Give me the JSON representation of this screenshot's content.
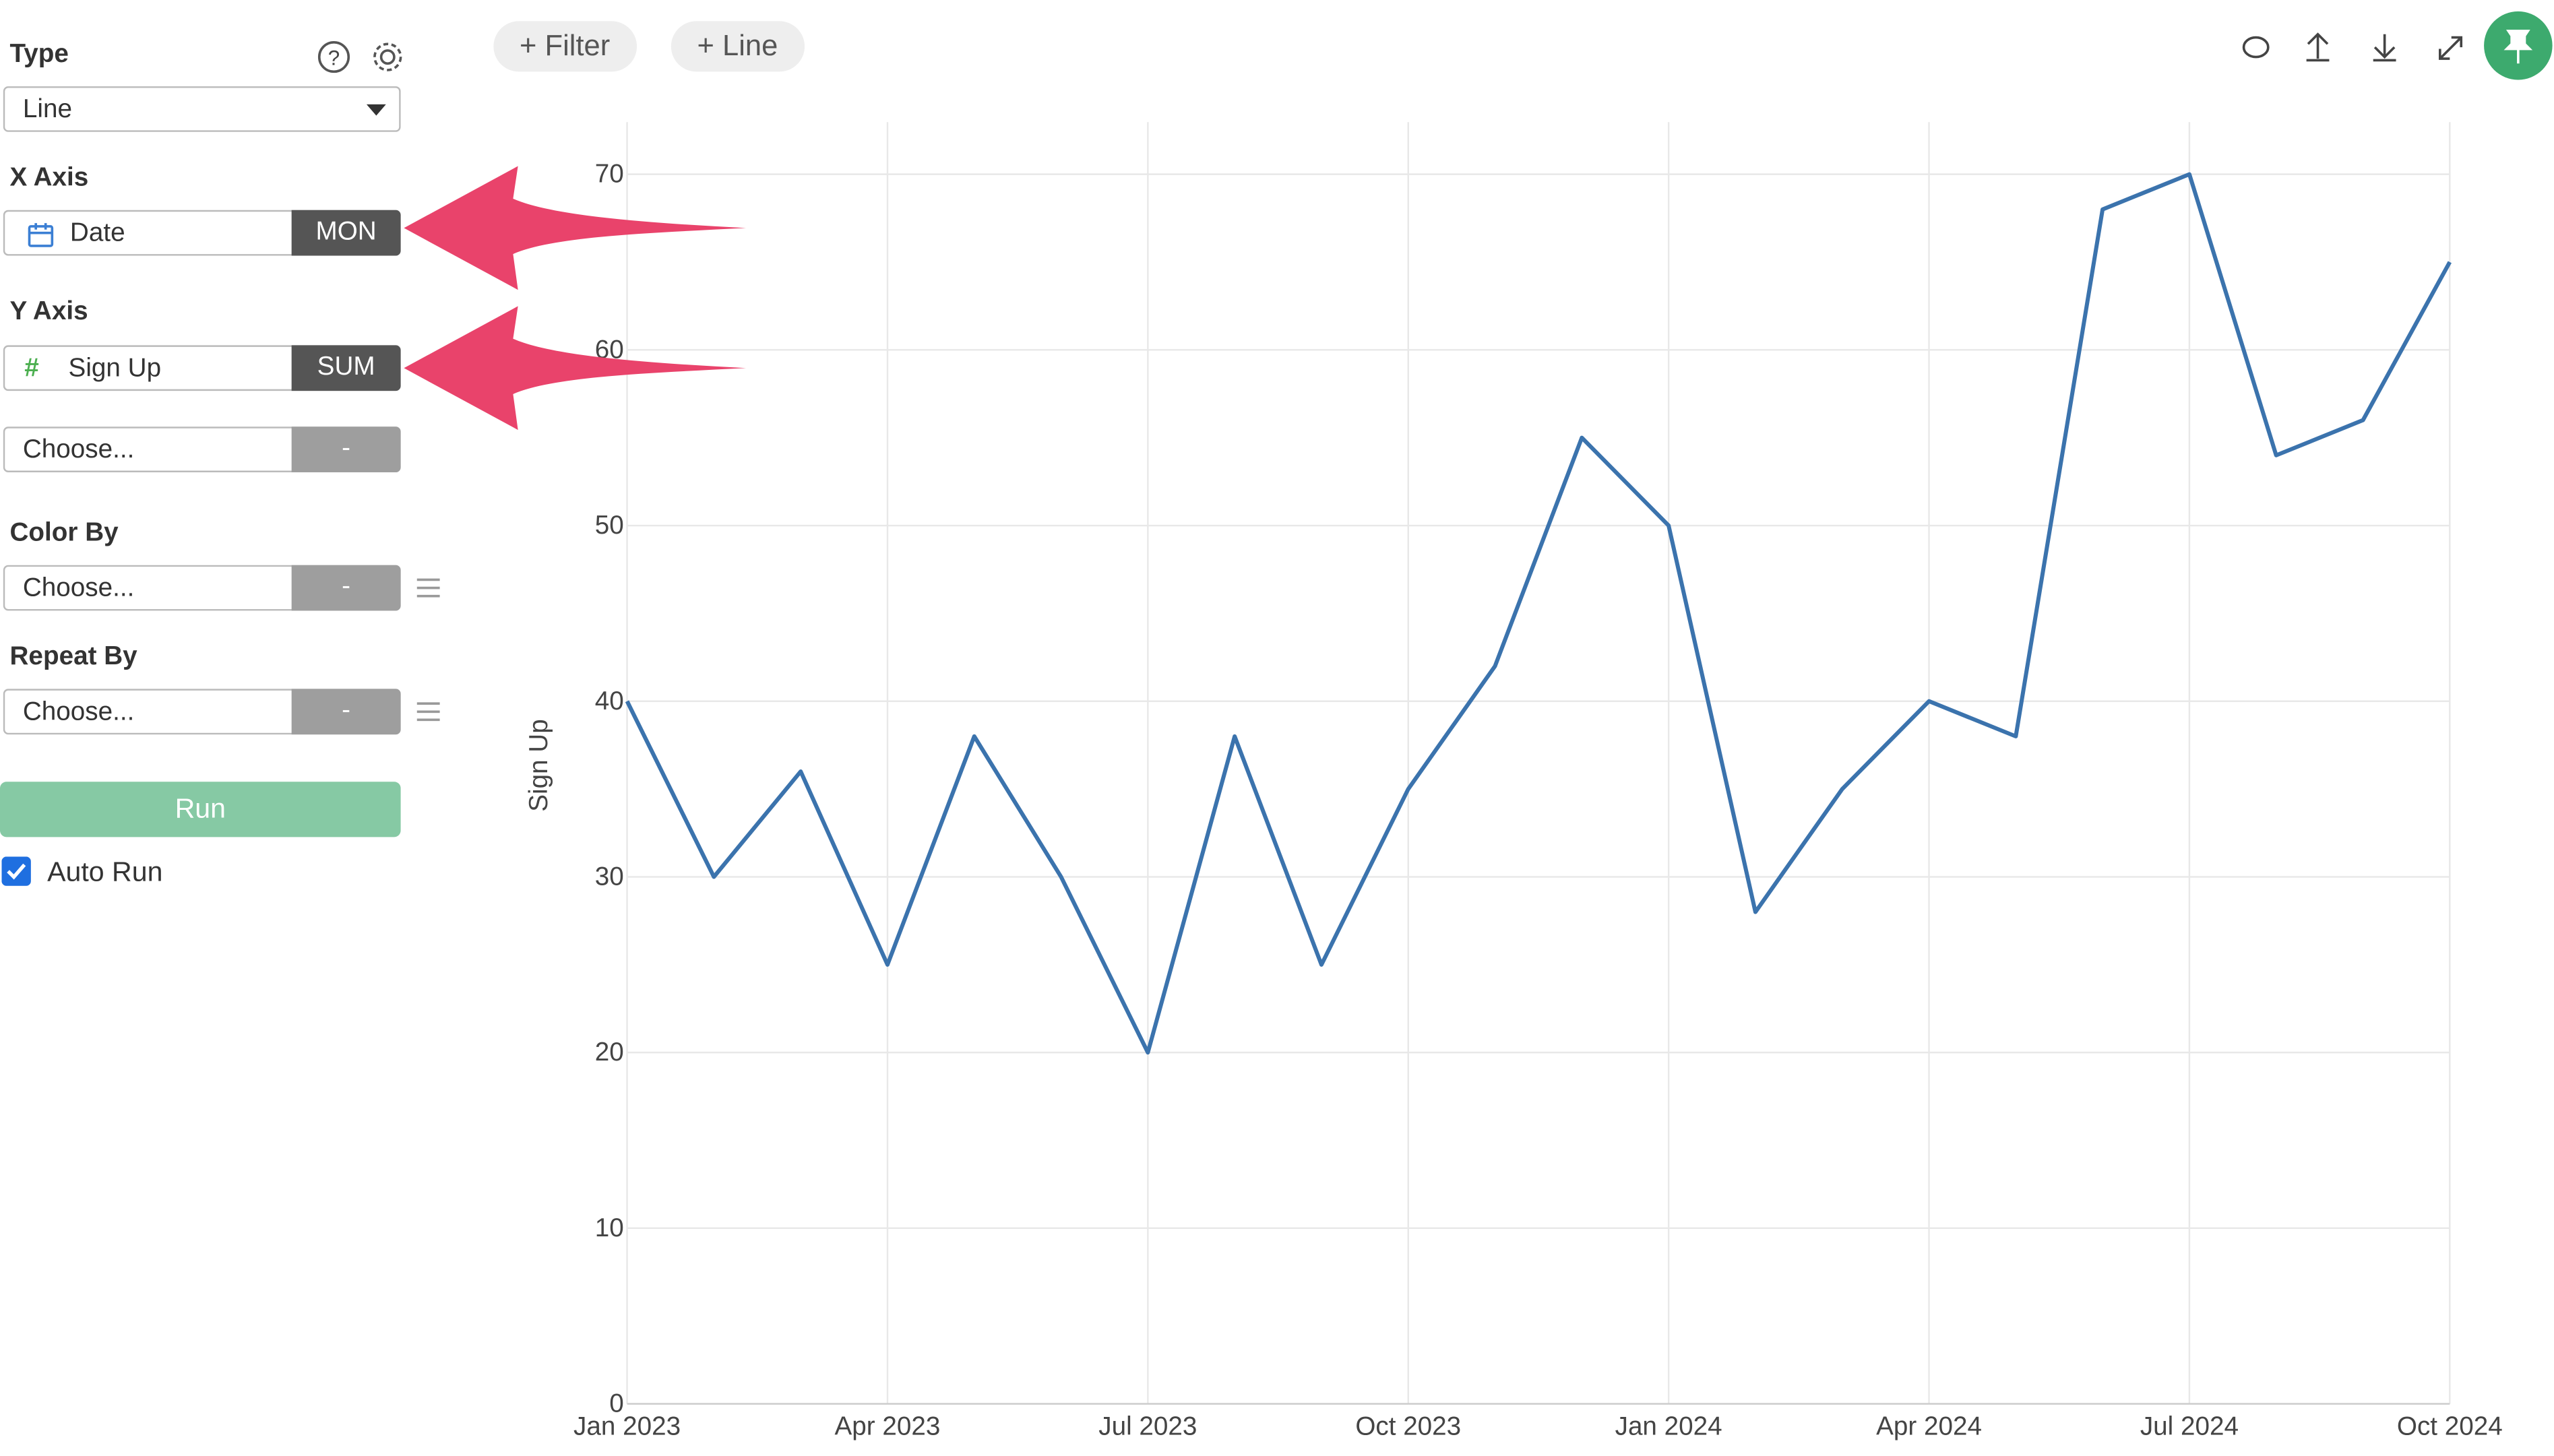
{
  "sidebar": {
    "type_label": "Type",
    "type_value": "Line",
    "x_axis_label": "X Axis",
    "x_field": "Date",
    "x_agg": "MON",
    "y_axis_label": "Y Axis",
    "y_field": "Sign Up",
    "y_agg": "SUM",
    "y_choose": "Choose...",
    "y_choose_agg": "-",
    "color_by_label": "Color By",
    "color_choose": "Choose...",
    "color_agg": "-",
    "repeat_by_label": "Repeat By",
    "repeat_choose": "Choose...",
    "repeat_agg": "-",
    "run": "Run",
    "auto_run": "Auto Run"
  },
  "toolbar": {
    "filter": "Filter",
    "line": "Line"
  },
  "chart_data": {
    "type": "line",
    "y_label": "Sign Up",
    "color": "#3b73ad",
    "grid": true,
    "x": [
      "2023-01",
      "2023-02",
      "2023-03",
      "2023-04",
      "2023-05",
      "2023-06",
      "2023-07",
      "2023-08",
      "2023-09",
      "2023-10",
      "2023-11",
      "2023-12",
      "2024-01",
      "2024-02",
      "2024-03",
      "2024-04",
      "2024-05",
      "2024-06",
      "2024-07",
      "2024-08",
      "2024-09",
      "2024-10"
    ],
    "series": [
      {
        "name": "Sign Up",
        "color": "#3b73ad",
        "values": [
          40,
          30,
          36,
          25,
          38,
          30,
          20,
          38,
          25,
          35,
          42,
          55,
          50,
          28,
          35,
          40,
          38,
          68,
          70,
          54,
          56,
          65
        ]
      }
    ],
    "xticks": [
      {
        "value": "2023-01",
        "label": "Jan 2023"
      },
      {
        "value": "2023-04",
        "label": "Apr 2023"
      },
      {
        "value": "2023-07",
        "label": "Jul 2023"
      },
      {
        "value": "2023-10",
        "label": "Oct 2023"
      },
      {
        "value": "2024-01",
        "label": "Jan 2024"
      },
      {
        "value": "2024-04",
        "label": "Apr 2024"
      },
      {
        "value": "2024-07",
        "label": "Jul 2024"
      },
      {
        "value": "2024-10",
        "label": "Oct 2024"
      }
    ],
    "ylim": [
      0,
      70
    ],
    "yticks": [
      0,
      10,
      20,
      30,
      40,
      50,
      60,
      70
    ]
  }
}
